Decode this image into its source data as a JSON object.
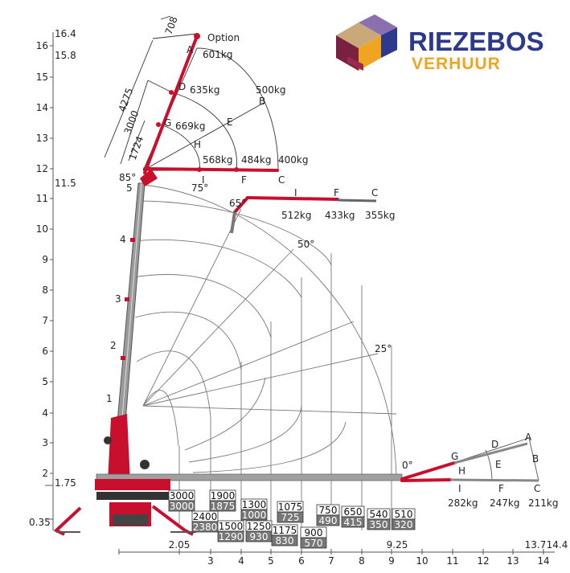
{
  "brand": {
    "name_line1": "RIEZEBOS",
    "name_line2": "VERHUUR",
    "color_primary": "#2d3a8c",
    "color_accent": "#f0a520",
    "color_purple": "#8b6fae"
  },
  "diagram": {
    "y_axis_ticks": [
      "16",
      "15",
      "14",
      "13",
      "12",
      "11",
      "10",
      "9",
      "8",
      "7",
      "6",
      "5",
      "4",
      "3",
      "2"
    ],
    "y_axis_extra": [
      "16.4",
      "15.8",
      "11.5",
      "1.75",
      "0.35"
    ],
    "x_axis_ticks": [
      "3",
      "4",
      "5",
      "6",
      "7",
      "8",
      "9",
      "10",
      "11",
      "12",
      "13",
      "14"
    ],
    "x_axis_extra": [
      "2.05",
      "9.25",
      "13.7",
      "14.4"
    ],
    "boom_section_labels": [
      "1",
      "2",
      "3",
      "4",
      "5"
    ],
    "angle_labels": [
      "85°",
      "75°",
      "65°",
      "50°",
      "25°",
      "0°"
    ],
    "option_label": "Option",
    "dimensions": [
      "708",
      "4275",
      "3000",
      "1724"
    ],
    "top_jib": {
      "points": [
        "A",
        "D",
        "G",
        "H",
        "B",
        "E",
        "I",
        "F",
        "C"
      ],
      "loads": [
        "601kg",
        "635kg",
        "669kg",
        "500kg",
        "568kg",
        "484kg",
        "400kg"
      ]
    },
    "mid_jib": {
      "points": [
        "I",
        "F",
        "C"
      ],
      "loads": [
        "512kg",
        "433kg",
        "355kg"
      ]
    },
    "low_jib": {
      "points": [
        "A",
        "D",
        "G",
        "H",
        "E",
        "B",
        "I",
        "F",
        "C"
      ],
      "loads": [
        "282kg",
        "247kg",
        "211kg"
      ]
    },
    "load_boxes": [
      {
        "top": "3000",
        "bottom": "3000"
      },
      {
        "top": "2400",
        "bottom": "2380"
      },
      {
        "top": "1900",
        "bottom": "1875"
      },
      {
        "top": "1500",
        "bottom": "1290"
      },
      {
        "top": "1300",
        "bottom": "1000"
      },
      {
        "top": "1250",
        "bottom": "930"
      },
      {
        "top": "1075",
        "bottom": "725"
      },
      {
        "top": "1175",
        "bottom": "830"
      },
      {
        "top": "900",
        "bottom": "570"
      },
      {
        "top": "750",
        "bottom": "490"
      },
      {
        "top": "650",
        "bottom": "415"
      },
      {
        "top": "540",
        "bottom": "350"
      },
      {
        "top": "510",
        "bottom": "320"
      }
    ]
  }
}
